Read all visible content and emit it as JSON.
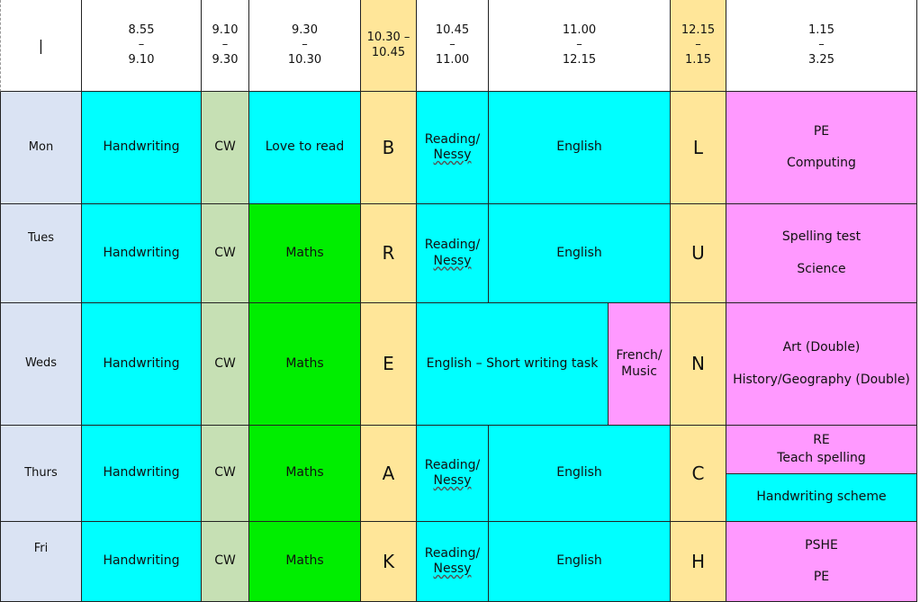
{
  "header": {
    "corner": "|",
    "times": [
      {
        "from": "8.55",
        "sep": "–",
        "to": "9.10"
      },
      {
        "from": "9.10",
        "sep": "–",
        "to": "9.30"
      },
      {
        "from": "9.30",
        "sep": "–",
        "to": "10.30"
      },
      {
        "single": "10.30 – 10.45"
      },
      {
        "from": "10.45",
        "sep": "–",
        "to": "11.00"
      },
      {
        "from": "11.00",
        "sep": "–",
        "to": "12.15"
      },
      {
        "from": "12.15",
        "sep": "–",
        "to": "1.15"
      },
      {
        "from": "1.15",
        "sep": "–",
        "to": "3.25"
      }
    ]
  },
  "days": [
    "Mon",
    "Tues",
    "Weds",
    "Thurs",
    "Fri"
  ],
  "breaks": {
    "morning": [
      "B",
      "R",
      "E",
      "A",
      "K"
    ],
    "lunch": [
      "L",
      "U",
      "N",
      "C",
      "H"
    ]
  },
  "subjects": {
    "handwriting": "Handwriting",
    "cw": "CW",
    "love_to_read": "Love to read",
    "maths": "Maths",
    "reading_a": "Reading/",
    "reading_b": "Nessy",
    "english": "English",
    "english_short": "English – Short writing task",
    "french_a": "French/",
    "french_b": "Music"
  },
  "afternoon": {
    "mon": [
      "PE",
      "Computing"
    ],
    "tues": [
      "Spelling test",
      "Science"
    ],
    "weds": [
      "Art (Double)",
      "History/Geography (Double)"
    ],
    "thurs_top": [
      "RE",
      "Teach spelling"
    ],
    "thurs_bottom": "Handwriting scheme",
    "fri": [
      "PSHE",
      "PE"
    ]
  }
}
